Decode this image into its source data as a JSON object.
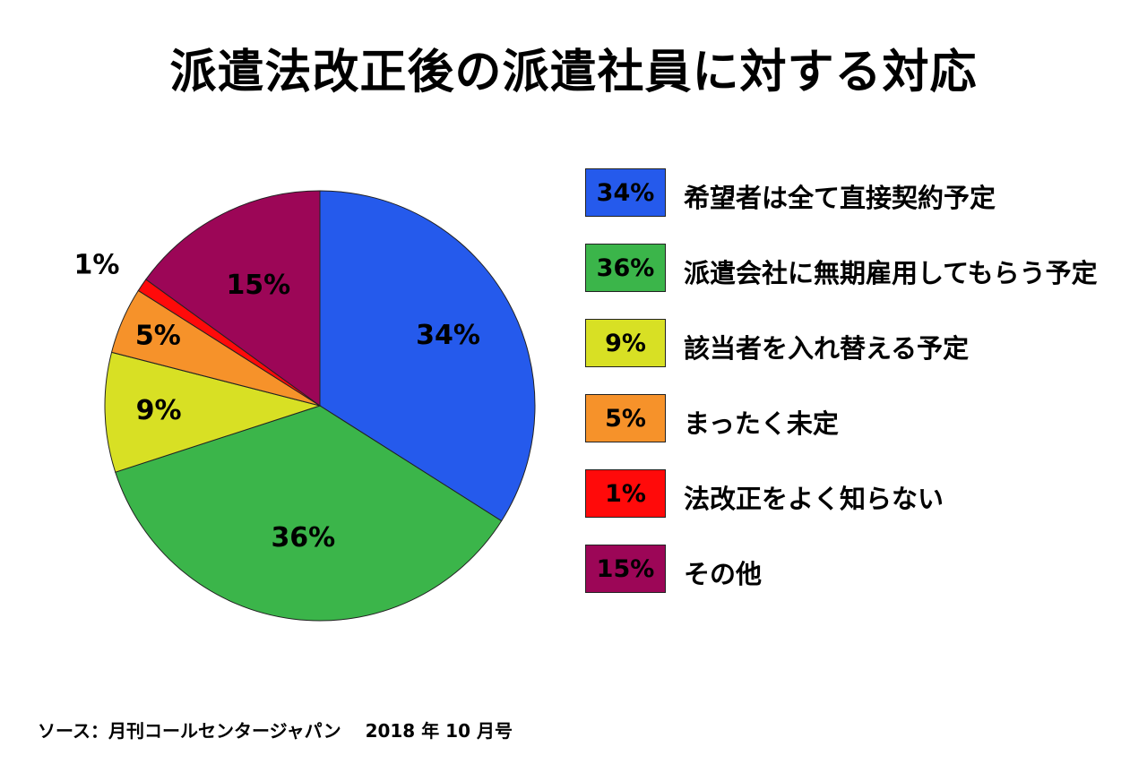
{
  "title": "派遣法改正後の派遣社員に対する対応",
  "source": "ソース：月刊コールセンタージャパン　 2018 年 10 月号",
  "chart_data": {
    "type": "pie",
    "title": "派遣法改正後の派遣社員に対する対応",
    "categories": [
      "希望者は全て直接契約予定",
      "派遣会社に無期雇用してもらう予定",
      "該当者を入れ替える予定",
      "まったく未定",
      "法改正をよく知らない",
      "その他"
    ],
    "values": [
      34,
      36,
      9,
      5,
      1,
      15
    ],
    "labels": [
      "34%",
      "36%",
      "9%",
      "5%",
      "1%",
      "15%"
    ],
    "colors": [
      "#255AEC",
      "#3BB54A",
      "#D8E024",
      "#F6922A",
      "#FF0A0A",
      "#9C0657"
    ],
    "legend_placement": "right"
  }
}
